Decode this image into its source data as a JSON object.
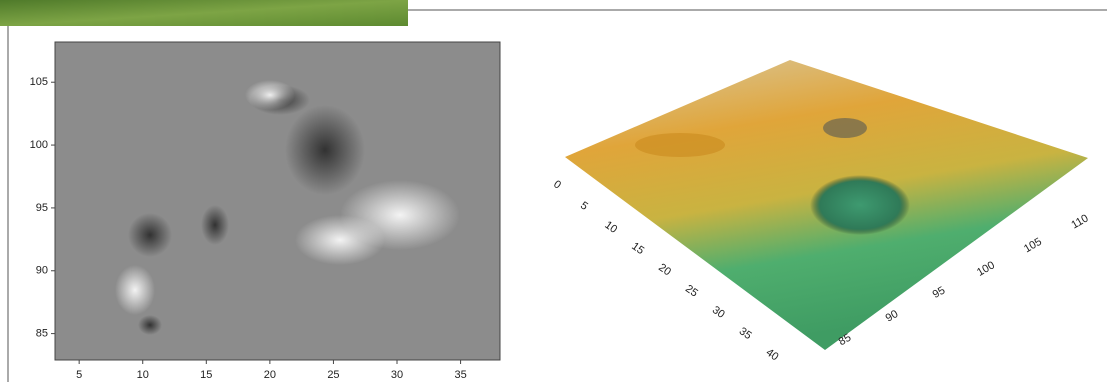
{
  "chart_data": [
    {
      "type": "raster",
      "xlim": [
        3.1,
        38.1
      ],
      "ylim": [
        82.9,
        108.2
      ],
      "xticks": [
        5,
        10,
        15,
        20,
        25,
        30,
        35
      ],
      "yticks": [
        85,
        90,
        95,
        100,
        105
      ]
    },
    {
      "type": "surface3d",
      "xticks": [
        0,
        5,
        10,
        15,
        20,
        25,
        30,
        35,
        40
      ],
      "yticks": [
        85,
        90,
        95,
        100,
        105,
        110
      ]
    }
  ]
}
